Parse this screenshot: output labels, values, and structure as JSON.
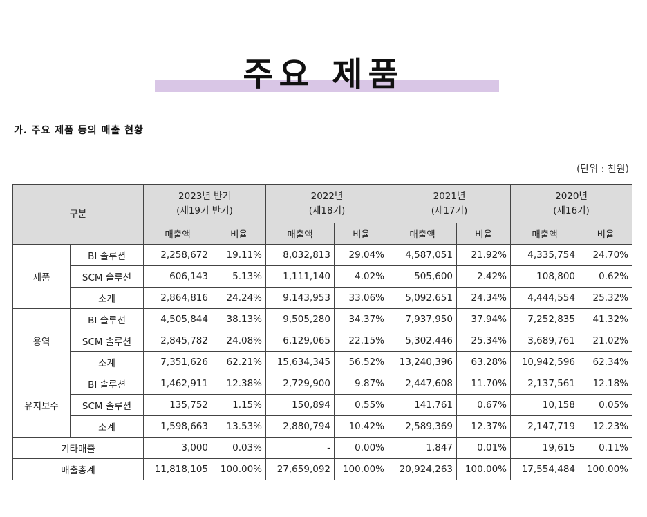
{
  "page": {
    "title": "주요 제품",
    "subtitle": "가. 주요 제품 등의 매출 현황",
    "unit": "(단위 : 천원)"
  },
  "table": {
    "header": {
      "category": "구분",
      "periods": [
        {
          "year": "2023년 반기",
          "term": "(제19기 반기)"
        },
        {
          "year": "2022년",
          "term": "(제18기)"
        },
        {
          "year": "2021년",
          "term": "(제17기)"
        },
        {
          "year": "2020년",
          "term": "(제16기)"
        }
      ],
      "sales_label": "매출액",
      "ratio_label": "비율"
    },
    "groups": [
      {
        "name": "제품",
        "rows": [
          {
            "label": "BI 솔루션",
            "values": [
              "2,258,672",
              "19.11%",
              "8,032,813",
              "29.04%",
              "4,587,051",
              "21.92%",
              "4,335,754",
              "24.70%"
            ]
          },
          {
            "label": "SCM 솔루션",
            "values": [
              "606,143",
              "5.13%",
              "1,111,140",
              "4.02%",
              "505,600",
              "2.42%",
              "108,800",
              "0.62%"
            ]
          },
          {
            "label": "소계",
            "values": [
              "2,864,816",
              "24.24%",
              "9,143,953",
              "33.06%",
              "5,092,651",
              "24.34%",
              "4,444,554",
              "25.32%"
            ]
          }
        ]
      },
      {
        "name": "용역",
        "rows": [
          {
            "label": "BI 솔루션",
            "values": [
              "4,505,844",
              "38.13%",
              "9,505,280",
              "34.37%",
              "7,937,950",
              "37.94%",
              "7,252,835",
              "41.32%"
            ]
          },
          {
            "label": "SCM 솔루션",
            "values": [
              "2,845,782",
              "24.08%",
              "6,129,065",
              "22.15%",
              "5,302,446",
              "25.34%",
              "3,689,761",
              "21.02%"
            ]
          },
          {
            "label": "소계",
            "values": [
              "7,351,626",
              "62.21%",
              "15,634,345",
              "56.52%",
              "13,240,396",
              "63.28%",
              "10,942,596",
              "62.34%"
            ]
          }
        ]
      },
      {
        "name": "유지보수",
        "rows": [
          {
            "label": "BI 솔루션",
            "values": [
              "1,462,911",
              "12.38%",
              "2,729,900",
              "9.87%",
              "2,447,608",
              "11.70%",
              "2,137,561",
              "12.18%"
            ]
          },
          {
            "label": "SCM 솔루션",
            "values": [
              "135,752",
              "1.15%",
              "150,894",
              "0.55%",
              "141,761",
              "0.67%",
              "10,158",
              "0.05%"
            ]
          },
          {
            "label": "소계",
            "values": [
              "1,598,663",
              "13.53%",
              "2,880,794",
              "10.42%",
              "2,589,369",
              "12.37%",
              "2,147,719",
              "12.23%"
            ]
          }
        ]
      }
    ],
    "totals": [
      {
        "label": "기타매출",
        "values": [
          "3,000",
          "0.03%",
          "-",
          "0.00%",
          "1,847",
          "0.01%",
          "19,615",
          "0.11%"
        ]
      },
      {
        "label": "매출총계",
        "values": [
          "11,818,105",
          "100.00%",
          "27,659,092",
          "100.00%",
          "20,924,263",
          "100.00%",
          "17,554,484",
          "100.00%"
        ]
      }
    ]
  }
}
